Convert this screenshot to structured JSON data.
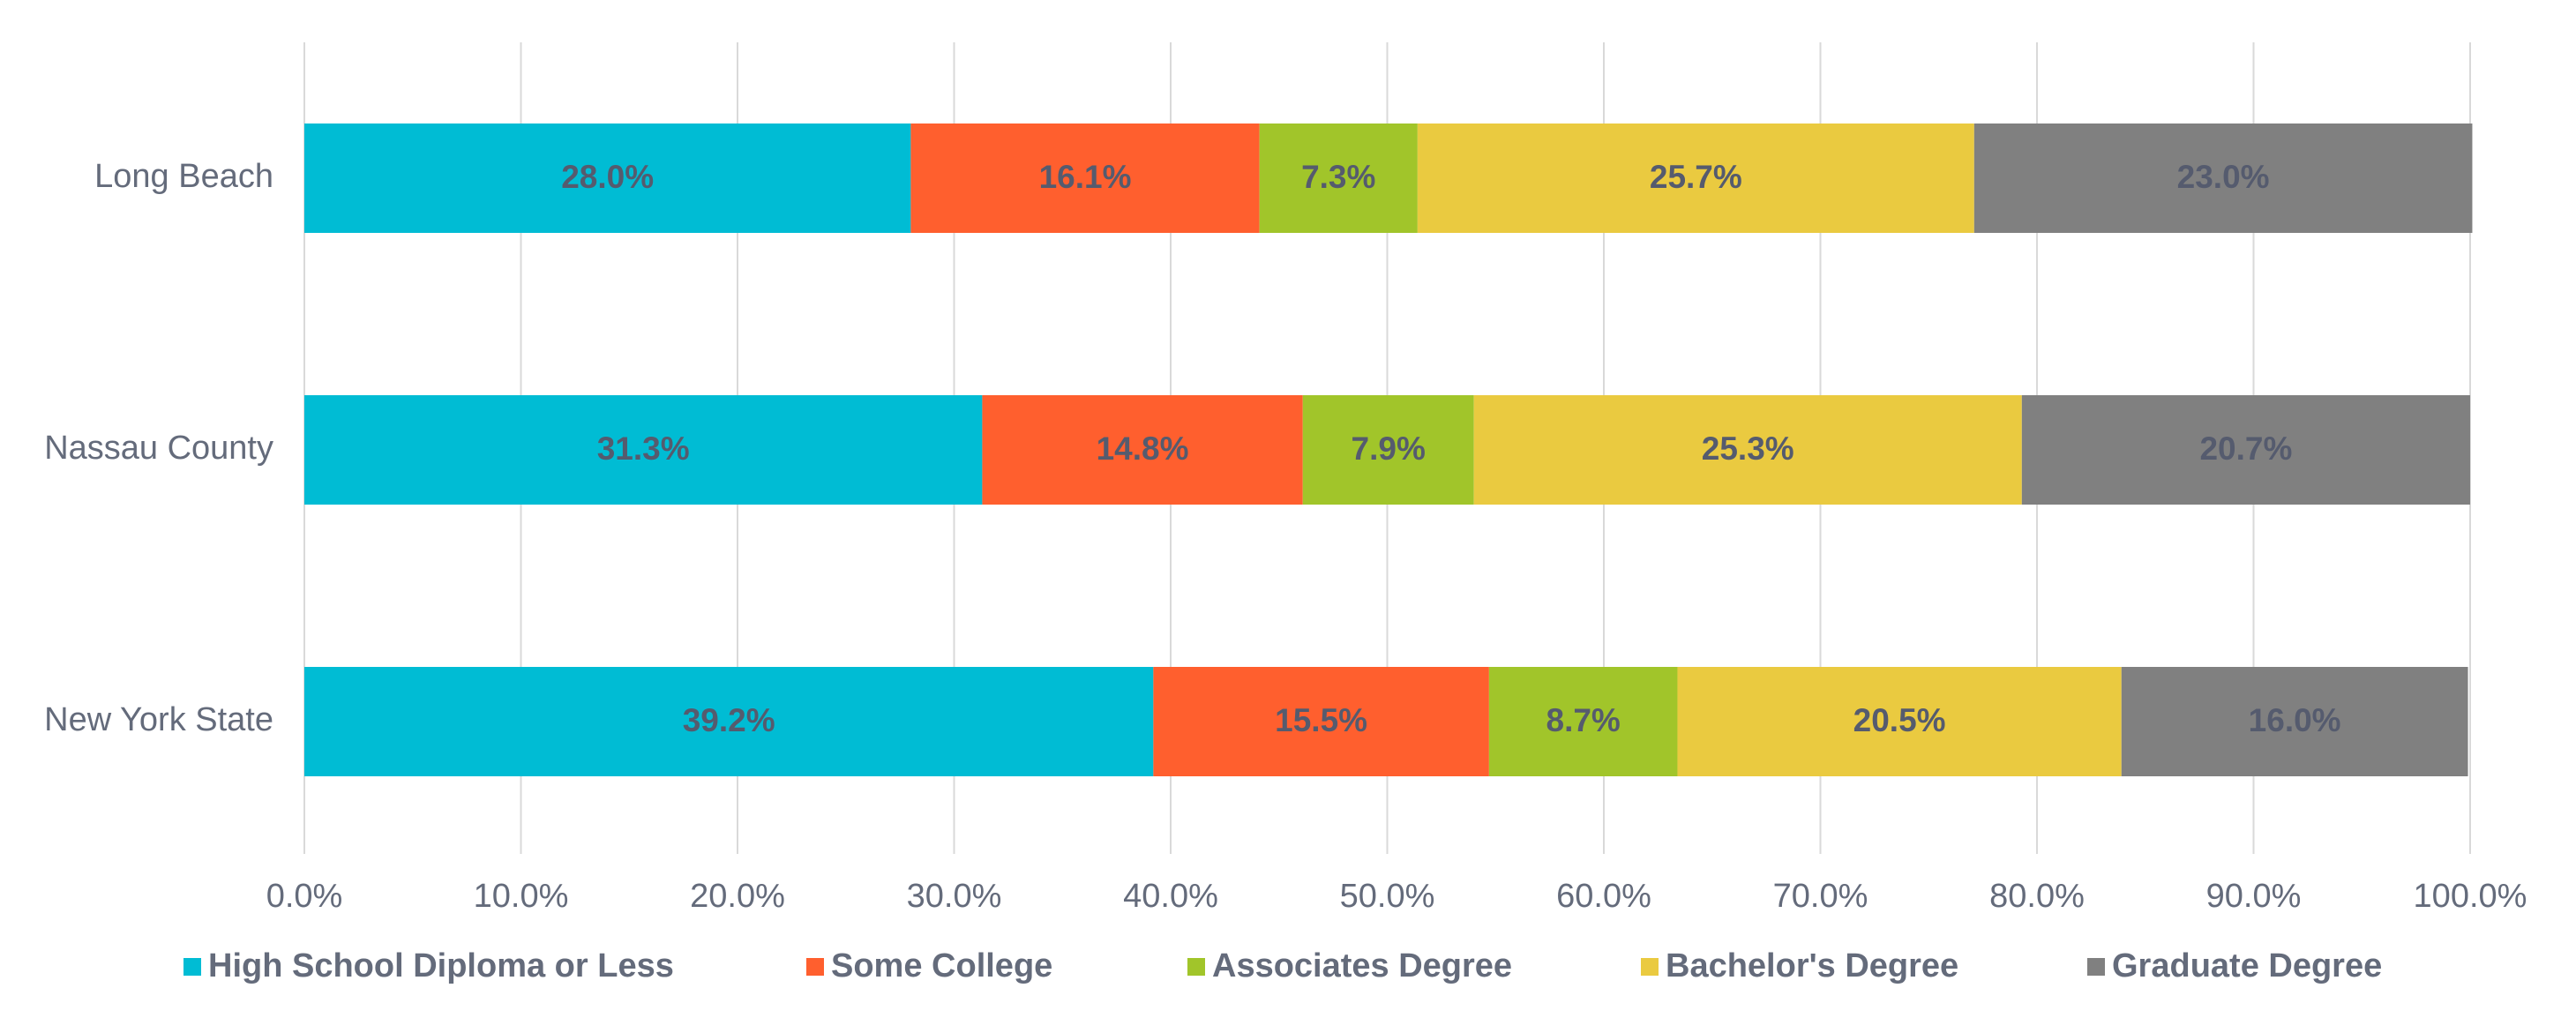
{
  "chart_data": {
    "type": "bar",
    "orientation": "horizontal",
    "stacked": true,
    "title": "",
    "xlabel": "",
    "ylabel": "",
    "categories": [
      "Long Beach",
      "Nassau County",
      "New York State"
    ],
    "series": [
      {
        "name": "High School Diploma or Less",
        "color": "#00BCD4",
        "values": [
          28.0,
          31.3,
          39.2
        ],
        "labels": [
          "28.0%",
          "31.3%",
          "39.2%"
        ]
      },
      {
        "name": "Some College",
        "color": "#FF5F2E",
        "values": [
          16.1,
          14.8,
          15.5
        ],
        "labels": [
          "16.1%",
          "14.8%",
          "15.5%"
        ]
      },
      {
        "name": "Associates Degree",
        "color": "#A1C52A",
        "values": [
          7.3,
          7.9,
          8.7
        ],
        "labels": [
          "7.3%",
          "7.9%",
          "8.7%"
        ]
      },
      {
        "name": "Bachelor's Degree",
        "color": "#EACA40",
        "values": [
          25.7,
          25.3,
          20.5
        ],
        "labels": [
          "25.7%",
          "25.3%",
          "20.5%"
        ]
      },
      {
        "name": "Graduate Degree",
        "color": "#808080",
        "values": [
          23.0,
          20.7,
          16.0
        ],
        "labels": [
          "23.0%",
          "20.7%",
          "16.0%"
        ]
      }
    ],
    "xlim": [
      0,
      100
    ],
    "xticks": [
      0,
      10,
      20,
      30,
      40,
      50,
      60,
      70,
      80,
      90,
      100
    ],
    "xtick_labels": [
      "0.0%",
      "10.0%",
      "20.0%",
      "30.0%",
      "40.0%",
      "50.0%",
      "60.0%",
      "70.0%",
      "80.0%",
      "90.0%",
      "100.0%"
    ],
    "grid": true,
    "legend_position": "bottom"
  }
}
